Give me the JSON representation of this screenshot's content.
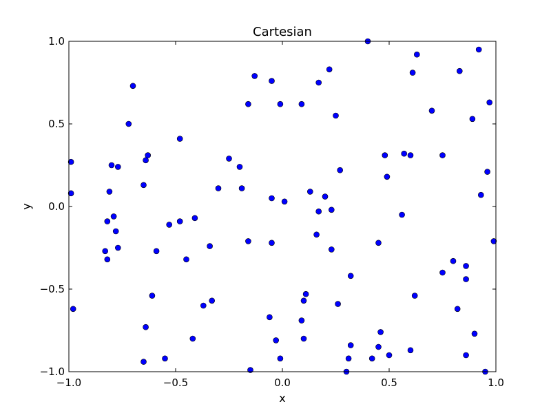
{
  "chart_data": {
    "type": "scatter",
    "title": "Cartesian",
    "xlabel": "x",
    "ylabel": "y",
    "xlim": [
      -1.0,
      1.0
    ],
    "ylim": [
      -1.0,
      1.0
    ],
    "grid": false,
    "marker_color": "#0000ff",
    "marker_edge_color": "#000000",
    "x_ticks": [
      -1.0,
      -0.5,
      0.0,
      0.5,
      1.0
    ],
    "y_ticks": [
      -1.0,
      -0.5,
      0.0,
      0.5,
      1.0
    ],
    "x_tick_labels": [
      "−1.0",
      "−0.5",
      "0.0",
      "0.5",
      "1.0"
    ],
    "y_tick_labels": [
      "−1.0",
      "−0.5",
      "0.0",
      "0.5",
      "1.0"
    ],
    "points": [
      [
        -0.99,
        0.27
      ],
      [
        -0.99,
        0.08
      ],
      [
        -0.98,
        -0.62
      ],
      [
        -0.83,
        -0.27
      ],
      [
        -0.82,
        -0.32
      ],
      [
        -0.82,
        -0.09
      ],
      [
        -0.81,
        0.09
      ],
      [
        -0.8,
        0.25
      ],
      [
        -0.79,
        -0.06
      ],
      [
        -0.78,
        -0.15
      ],
      [
        -0.77,
        0.24
      ],
      [
        -0.77,
        -0.25
      ],
      [
        -0.72,
        0.5
      ],
      [
        -0.7,
        0.73
      ],
      [
        -0.65,
        0.13
      ],
      [
        -0.65,
        -0.94
      ],
      [
        -0.64,
        0.28
      ],
      [
        -0.64,
        -0.73
      ],
      [
        -0.63,
        0.31
      ],
      [
        -0.61,
        -0.54
      ],
      [
        -0.59,
        -0.27
      ],
      [
        -0.55,
        -0.92
      ],
      [
        -0.53,
        -0.11
      ],
      [
        -0.48,
        0.41
      ],
      [
        -0.48,
        -0.09
      ],
      [
        -0.45,
        -0.32
      ],
      [
        -0.42,
        -0.8
      ],
      [
        -0.41,
        -0.07
      ],
      [
        -0.37,
        -0.6
      ],
      [
        -0.34,
        -0.24
      ],
      [
        -0.33,
        -0.57
      ],
      [
        -0.3,
        0.11
      ],
      [
        -0.25,
        0.29
      ],
      [
        -0.2,
        0.24
      ],
      [
        -0.19,
        0.11
      ],
      [
        -0.16,
        0.62
      ],
      [
        -0.16,
        -0.21
      ],
      [
        -0.15,
        -0.99
      ],
      [
        -0.13,
        0.79
      ],
      [
        -0.05,
        0.76
      ],
      [
        -0.05,
        0.05
      ],
      [
        -0.05,
        -0.22
      ],
      [
        -0.06,
        -0.67
      ],
      [
        -0.03,
        -0.81
      ],
      [
        -0.01,
        0.62
      ],
      [
        -0.01,
        -0.92
      ],
      [
        0.01,
        0.03
      ],
      [
        0.09,
        0.62
      ],
      [
        0.09,
        -0.69
      ],
      [
        0.1,
        -0.57
      ],
      [
        0.1,
        -0.8
      ],
      [
        0.11,
        -0.53
      ],
      [
        0.13,
        0.09
      ],
      [
        0.16,
        -0.17
      ],
      [
        0.17,
        -0.03
      ],
      [
        0.17,
        0.75
      ],
      [
        0.2,
        0.06
      ],
      [
        0.22,
        0.83
      ],
      [
        0.23,
        -0.02
      ],
      [
        0.23,
        -0.26
      ],
      [
        0.25,
        0.55
      ],
      [
        0.26,
        -0.59
      ],
      [
        0.27,
        0.22
      ],
      [
        0.3,
        -1.0
      ],
      [
        0.31,
        -0.92
      ],
      [
        0.32,
        -0.42
      ],
      [
        0.32,
        -0.84
      ],
      [
        0.4,
        1.0
      ],
      [
        0.42,
        -0.92
      ],
      [
        0.45,
        -0.22
      ],
      [
        0.45,
        -0.85
      ],
      [
        0.46,
        -0.76
      ],
      [
        0.48,
        0.31
      ],
      [
        0.49,
        0.18
      ],
      [
        0.5,
        -0.9
      ],
      [
        0.56,
        -0.05
      ],
      [
        0.57,
        0.32
      ],
      [
        0.6,
        0.31
      ],
      [
        0.6,
        -0.87
      ],
      [
        0.61,
        0.81
      ],
      [
        0.62,
        -0.54
      ],
      [
        0.63,
        0.92
      ],
      [
        0.7,
        0.58
      ],
      [
        0.75,
        0.31
      ],
      [
        0.75,
        -0.4
      ],
      [
        0.8,
        -0.33
      ],
      [
        0.82,
        -0.62
      ],
      [
        0.83,
        0.82
      ],
      [
        0.86,
        -0.36
      ],
      [
        0.86,
        -0.44
      ],
      [
        0.86,
        -0.9
      ],
      [
        0.89,
        0.53
      ],
      [
        0.9,
        -0.77
      ],
      [
        0.92,
        0.95
      ],
      [
        0.93,
        0.07
      ],
      [
        0.95,
        -1.0
      ],
      [
        0.96,
        0.21
      ],
      [
        0.97,
        0.63
      ],
      [
        0.99,
        -0.21
      ]
    ]
  }
}
